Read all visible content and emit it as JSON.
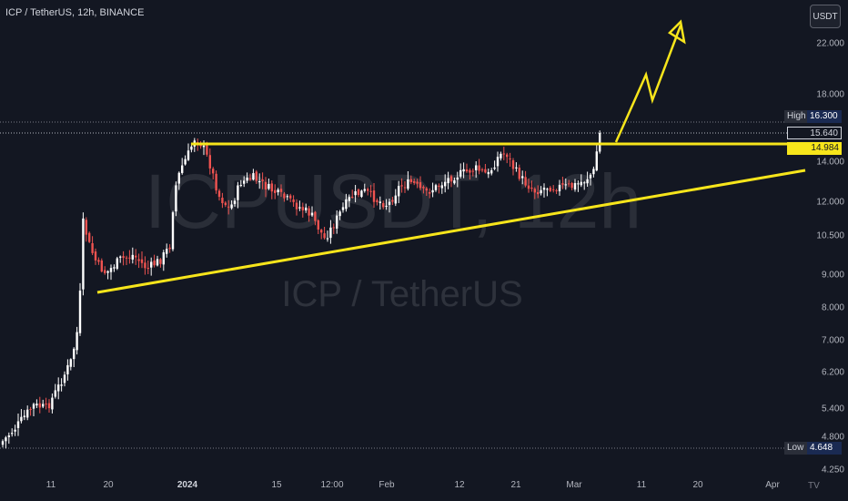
{
  "symbol_title": "ICP / TetherUS, 12h, BINANCE",
  "currency_button": "USDT",
  "watermark": {
    "ticker": "ICPUSDT, 12h",
    "name": "ICP / TetherUS"
  },
  "price_axis": [
    "22.000",
    "18.000",
    "14.000",
    "12.000",
    "10.500",
    "9.000",
    "8.000",
    "7.000",
    "6.200",
    "5.400",
    "4.800",
    "4.250"
  ],
  "time_axis": [
    {
      "label": "11",
      "bold": false
    },
    {
      "label": "20",
      "bold": false
    },
    {
      "label": "2024",
      "bold": true
    },
    {
      "label": "15",
      "bold": false
    },
    {
      "label": "12:00",
      "bold": false
    },
    {
      "label": "Feb",
      "bold": false
    },
    {
      "label": "12",
      "bold": false
    },
    {
      "label": "21",
      "bold": false
    },
    {
      "label": "Mar",
      "bold": false
    },
    {
      "label": "11",
      "bold": false
    },
    {
      "label": "20",
      "bold": false
    },
    {
      "label": "Apr",
      "bold": false
    }
  ],
  "tags": {
    "high_label": "High",
    "high_value": "16.300",
    "current_price": "15.640",
    "level_price": "14.984",
    "low_label": "Low",
    "low_value": "4.648"
  },
  "colors": {
    "background": "#131722",
    "candle_up": "#ffffff",
    "candle_down": "#ef5350",
    "drawing": "#f7e51b",
    "watermark": "#3b3e47"
  },
  "logo": "TV"
}
